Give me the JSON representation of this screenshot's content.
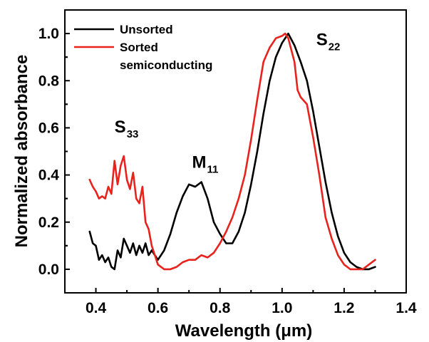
{
  "chart_data": {
    "type": "line",
    "title": "",
    "xlabel": "Wavelength (μm)",
    "ylabel": "Normalized absorbance",
    "xlim": [
      0.3,
      1.4
    ],
    "ylim": [
      -0.1,
      1.1
    ],
    "x_ticks": [
      0.4,
      0.6,
      0.8,
      1.0,
      1.2,
      1.4
    ],
    "x_tick_labels": [
      "0.4",
      "0.6",
      "0.8",
      "1.0",
      "1.2",
      "1.4"
    ],
    "y_ticks": [
      0.0,
      0.2,
      0.4,
      0.6,
      0.8,
      1.0
    ],
    "y_tick_labels": [
      "0.0",
      "0.2",
      "0.4",
      "0.6",
      "0.8",
      "1.0"
    ],
    "grid": false,
    "legend_position": "top-left",
    "series": [
      {
        "name": "Unsorted",
        "color": "#000000",
        "points": [
          [
            0.38,
            0.16
          ],
          [
            0.39,
            0.11
          ],
          [
            0.4,
            0.1
          ],
          [
            0.41,
            0.04
          ],
          [
            0.42,
            0.06
          ],
          [
            0.43,
            0.03
          ],
          [
            0.44,
            0.05
          ],
          [
            0.45,
            0.01
          ],
          [
            0.46,
            0.0
          ],
          [
            0.47,
            0.08
          ],
          [
            0.48,
            0.05
          ],
          [
            0.49,
            0.13
          ],
          [
            0.5,
            0.1
          ],
          [
            0.51,
            0.07
          ],
          [
            0.52,
            0.11
          ],
          [
            0.53,
            0.06
          ],
          [
            0.54,
            0.1
          ],
          [
            0.55,
            0.07
          ],
          [
            0.56,
            0.11
          ],
          [
            0.57,
            0.06
          ],
          [
            0.58,
            0.08
          ],
          [
            0.59,
            0.06
          ],
          [
            0.6,
            0.04
          ],
          [
            0.62,
            0.08
          ],
          [
            0.64,
            0.15
          ],
          [
            0.66,
            0.24
          ],
          [
            0.68,
            0.31
          ],
          [
            0.7,
            0.36
          ],
          [
            0.72,
            0.35
          ],
          [
            0.74,
            0.37
          ],
          [
            0.76,
            0.3
          ],
          [
            0.78,
            0.2
          ],
          [
            0.8,
            0.15
          ],
          [
            0.82,
            0.11
          ],
          [
            0.84,
            0.11
          ],
          [
            0.86,
            0.16
          ],
          [
            0.88,
            0.24
          ],
          [
            0.9,
            0.36
          ],
          [
            0.92,
            0.5
          ],
          [
            0.94,
            0.66
          ],
          [
            0.96,
            0.8
          ],
          [
            0.98,
            0.9
          ],
          [
            1.0,
            0.96
          ],
          [
            1.02,
            1.0
          ],
          [
            1.04,
            0.95
          ],
          [
            1.06,
            0.88
          ],
          [
            1.08,
            0.8
          ],
          [
            1.1,
            0.67
          ],
          [
            1.12,
            0.52
          ],
          [
            1.14,
            0.37
          ],
          [
            1.16,
            0.24
          ],
          [
            1.18,
            0.14
          ],
          [
            1.2,
            0.07
          ],
          [
            1.22,
            0.03
          ],
          [
            1.24,
            0.01
          ],
          [
            1.26,
            0.0
          ],
          [
            1.28,
            0.0
          ],
          [
            1.3,
            0.01
          ]
        ]
      },
      {
        "name": "Sorted semiconducting",
        "color": "#e8221c",
        "points": [
          [
            0.38,
            0.38
          ],
          [
            0.39,
            0.35
          ],
          [
            0.4,
            0.33
          ],
          [
            0.41,
            0.3
          ],
          [
            0.42,
            0.31
          ],
          [
            0.43,
            0.3
          ],
          [
            0.44,
            0.35
          ],
          [
            0.45,
            0.32
          ],
          [
            0.46,
            0.46
          ],
          [
            0.47,
            0.36
          ],
          [
            0.48,
            0.44
          ],
          [
            0.49,
            0.48
          ],
          [
            0.5,
            0.38
          ],
          [
            0.51,
            0.34
          ],
          [
            0.52,
            0.41
          ],
          [
            0.53,
            0.3
          ],
          [
            0.54,
            0.28
          ],
          [
            0.55,
            0.35
          ],
          [
            0.56,
            0.2
          ],
          [
            0.57,
            0.17
          ],
          [
            0.58,
            0.1
          ],
          [
            0.59,
            0.06
          ],
          [
            0.6,
            0.02
          ],
          [
            0.62,
            0.0
          ],
          [
            0.64,
            0.0
          ],
          [
            0.66,
            0.01
          ],
          [
            0.68,
            0.03
          ],
          [
            0.7,
            0.04
          ],
          [
            0.72,
            0.04
          ],
          [
            0.74,
            0.06
          ],
          [
            0.76,
            0.05
          ],
          [
            0.78,
            0.07
          ],
          [
            0.8,
            0.11
          ],
          [
            0.82,
            0.16
          ],
          [
            0.84,
            0.22
          ],
          [
            0.86,
            0.3
          ],
          [
            0.88,
            0.4
          ],
          [
            0.9,
            0.55
          ],
          [
            0.92,
            0.72
          ],
          [
            0.94,
            0.88
          ],
          [
            0.95,
            0.91
          ],
          [
            0.96,
            0.94
          ],
          [
            0.98,
            0.98
          ],
          [
            1.0,
            0.99
          ],
          [
            1.01,
            1.0
          ],
          [
            1.02,
            0.98
          ],
          [
            1.04,
            0.88
          ],
          [
            1.05,
            0.76
          ],
          [
            1.06,
            0.73
          ],
          [
            1.08,
            0.7
          ],
          [
            1.1,
            0.56
          ],
          [
            1.12,
            0.4
          ],
          [
            1.14,
            0.22
          ],
          [
            1.16,
            0.13
          ],
          [
            1.18,
            0.06
          ],
          [
            1.2,
            0.02
          ],
          [
            1.22,
            0.0
          ],
          [
            1.24,
            0.0
          ],
          [
            1.26,
            0.0
          ],
          [
            1.28,
            0.02
          ],
          [
            1.3,
            0.04
          ]
        ]
      }
    ],
    "legend": [
      {
        "lines": [
          "Unsorted"
        ],
        "color": "#000000"
      },
      {
        "lines": [
          "Sorted",
          "semiconducting"
        ],
        "color": "#e8221c"
      }
    ],
    "annotations": [
      {
        "main": "S",
        "sub": "33",
        "x": 0.46,
        "y": 0.58
      },
      {
        "main": "M",
        "sub": "11",
        "x": 0.71,
        "y": 0.43
      },
      {
        "main": "S",
        "sub": "22",
        "x": 1.11,
        "y": 0.95
      }
    ]
  }
}
